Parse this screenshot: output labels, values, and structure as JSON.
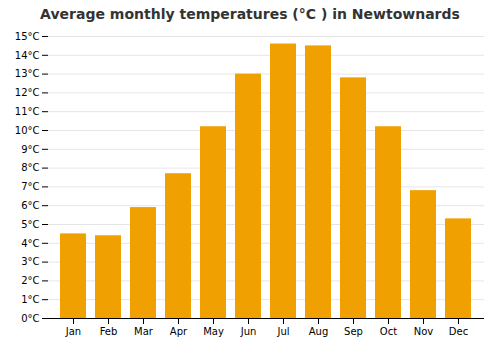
{
  "chart_data": {
    "type": "bar",
    "title": "Average monthly temperatures (°C ) in Newtownards",
    "categories": [
      "Jan",
      "Feb",
      "Mar",
      "Apr",
      "May",
      "Jun",
      "Jul",
      "Aug",
      "Sep",
      "Oct",
      "Nov",
      "Dec"
    ],
    "values": [
      4.5,
      4.4,
      5.9,
      7.7,
      10.2,
      13.0,
      14.6,
      14.5,
      12.8,
      10.2,
      6.8,
      5.3
    ],
    "color": "#F0A000",
    "ylim": [
      0,
      15
    ],
    "yticks": [
      {
        "value": 0,
        "label": "0°C"
      },
      {
        "value": 1,
        "label": "1°C"
      },
      {
        "value": 2,
        "label": "2°C"
      },
      {
        "value": 3,
        "label": "3°C"
      },
      {
        "value": 4,
        "label": "4°C"
      },
      {
        "value": 5,
        "label": "5°C"
      },
      {
        "value": 6,
        "label": "6°C"
      },
      {
        "value": 7,
        "label": "7°C"
      },
      {
        "value": 8,
        "label": "8°C"
      },
      {
        "value": 9,
        "label": "9°C"
      },
      {
        "value": 10,
        "label": "10°C"
      },
      {
        "value": 11,
        "label": "11°C"
      },
      {
        "value": 12,
        "label": "12°C"
      },
      {
        "value": 13,
        "label": "13°C"
      },
      {
        "value": 14,
        "label": "14°C"
      },
      {
        "value": 15,
        "label": "15°C"
      }
    ],
    "grid": true
  }
}
